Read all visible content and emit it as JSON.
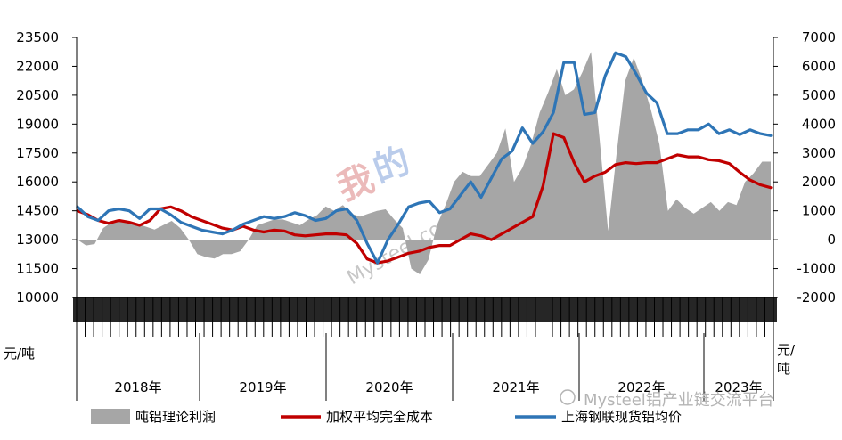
{
  "chart_data": {
    "type": "area+line",
    "left_axis": {
      "label": "元/吨",
      "ylim": [
        10000,
        23500
      ],
      "ticks": [
        23500,
        22000,
        20500,
        19000,
        17500,
        16000,
        14500,
        13000,
        11500,
        10000
      ]
    },
    "right_axis": {
      "label": "元/吨",
      "ylim": [
        -2000,
        7000
      ],
      "ticks": [
        7000,
        6000,
        5000,
        4000,
        3000,
        2000,
        1000,
        0,
        -1000,
        -2000
      ]
    },
    "years": [
      "2018年",
      "2019年",
      "2020年",
      "2021年",
      "2022年",
      "2023年"
    ],
    "series": [
      {
        "name": "吨铝理论利润",
        "type": "area",
        "axis": "right",
        "color": "#a6a6a6",
        "values": [
          0,
          -200,
          -150,
          400,
          600,
          650,
          600,
          550,
          450,
          350,
          500,
          650,
          400,
          0,
          -500,
          -600,
          -650,
          -500,
          -500,
          -400,
          0,
          500,
          600,
          700,
          700,
          600,
          500,
          700,
          850,
          1150,
          1000,
          1200,
          900,
          800,
          900,
          1000,
          1050,
          700,
          400,
          -1000,
          -1200,
          -700,
          500,
          1200,
          2000,
          2350,
          2200,
          2200,
          2600,
          3000,
          3850,
          2000,
          2500,
          3300,
          4400,
          5100,
          5900,
          5000,
          5200,
          5800,
          6500,
          3500,
          300,
          3000,
          5500,
          6300,
          5500,
          4500,
          3300,
          1000,
          1400,
          1100,
          900,
          1100,
          1300,
          1000,
          1300,
          1200,
          2000,
          2300,
          2700,
          2700
        ]
      },
      {
        "name": "加权平均完全成本",
        "type": "line",
        "axis": "left",
        "color": "#c00000",
        "values": [
          14500,
          14300,
          14000,
          13850,
          14000,
          13900,
          13750,
          14000,
          14600,
          14700,
          14500,
          14200,
          14000,
          13800,
          13600,
          13500,
          13700,
          13500,
          13400,
          13500,
          13450,
          13250,
          13200,
          13250,
          13300,
          13300,
          13250,
          12800,
          12000,
          11800,
          11900,
          12100,
          12300,
          12400,
          12600,
          12700,
          12700,
          13000,
          13300,
          13200,
          13000,
          13300,
          13600,
          13900,
          14200,
          15800,
          18500,
          18300,
          17000,
          16000,
          16300,
          16500,
          16900,
          17000,
          16950,
          17000,
          17000,
          17200,
          17400,
          17300,
          17300,
          17150,
          17100,
          16950,
          16500,
          16100,
          15850,
          15700
        ]
      },
      {
        "name": "上海钢联现货铝均价",
        "type": "line",
        "axis": "left",
        "color": "#2e75b6",
        "values": [
          14700,
          14200,
          14000,
          14500,
          14600,
          14500,
          14100,
          14600,
          14600,
          14300,
          13900,
          13700,
          13500,
          13400,
          13300,
          13500,
          13800,
          14000,
          14200,
          14100,
          14200,
          14400,
          14250,
          14000,
          14100,
          14500,
          14600,
          14000,
          12800,
          11800,
          13000,
          13800,
          14700,
          14900,
          15000,
          14400,
          14600,
          15300,
          16000,
          15200,
          16200,
          17200,
          17600,
          18800,
          18000,
          18600,
          19600,
          22200,
          22200,
          19500,
          19600,
          21500,
          22700,
          22500,
          21600,
          20600,
          20100,
          18500,
          18500,
          18700,
          18700,
          19000,
          18500,
          18700,
          18450,
          18700,
          18500,
          18400
        ]
      }
    ]
  },
  "watermark": {
    "logo_chars": [
      "我",
      "的"
    ],
    "url": "Mysteel.com"
  },
  "brand": {
    "text": "Mysteel铝产业链交流平台"
  }
}
